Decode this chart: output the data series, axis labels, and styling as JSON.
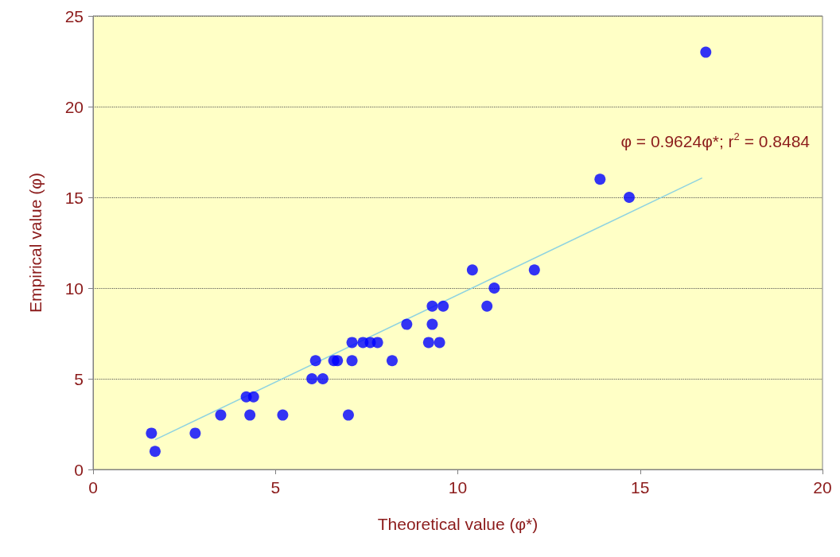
{
  "chart_data": {
    "type": "scatter",
    "xlabel": "Theoretical value (φ*)",
    "ylabel": "Empirical value (φ)",
    "xlim": [
      0,
      20
    ],
    "xticks": [
      0,
      5,
      10,
      15,
      20
    ],
    "ylim": [
      0,
      25
    ],
    "yticks": [
      0,
      5,
      10,
      15,
      20,
      25
    ],
    "grid": "y",
    "marker": "circle",
    "annotations": [
      "φ = 0.9624φ*; r$^{2}$ = 0.8484"
    ],
    "series": [
      {
        "color": "#0000ff",
        "x": [
          1.6,
          1.7,
          2.8,
          3.5,
          4.2,
          4.4,
          4.3,
          5.2,
          6.0,
          6.1,
          6.3,
          6.6,
          6.7,
          7.0,
          7.1,
          7.1,
          7.4,
          7.6,
          7.8,
          8.2,
          8.6,
          9.2,
          9.5,
          9.3,
          9.3,
          9.6,
          10.4,
          12.1,
          11.0,
          10.8,
          13.9,
          14.7,
          16.8
        ],
        "values": [
          2,
          1,
          2,
          3,
          4,
          4,
          3,
          3,
          5,
          6,
          5,
          6,
          6,
          3,
          7,
          6,
          7,
          7,
          7,
          6,
          8,
          7,
          7,
          8,
          9,
          9,
          11,
          11,
          10,
          9,
          16,
          15,
          23
        ]
      },
      {
        "type": "line",
        "color": "#8fd3e0",
        "marker": "none",
        "x": [
          1.7,
          16.7
        ],
        "values": [
          1.64,
          16.07
        ]
      }
    ]
  }
}
